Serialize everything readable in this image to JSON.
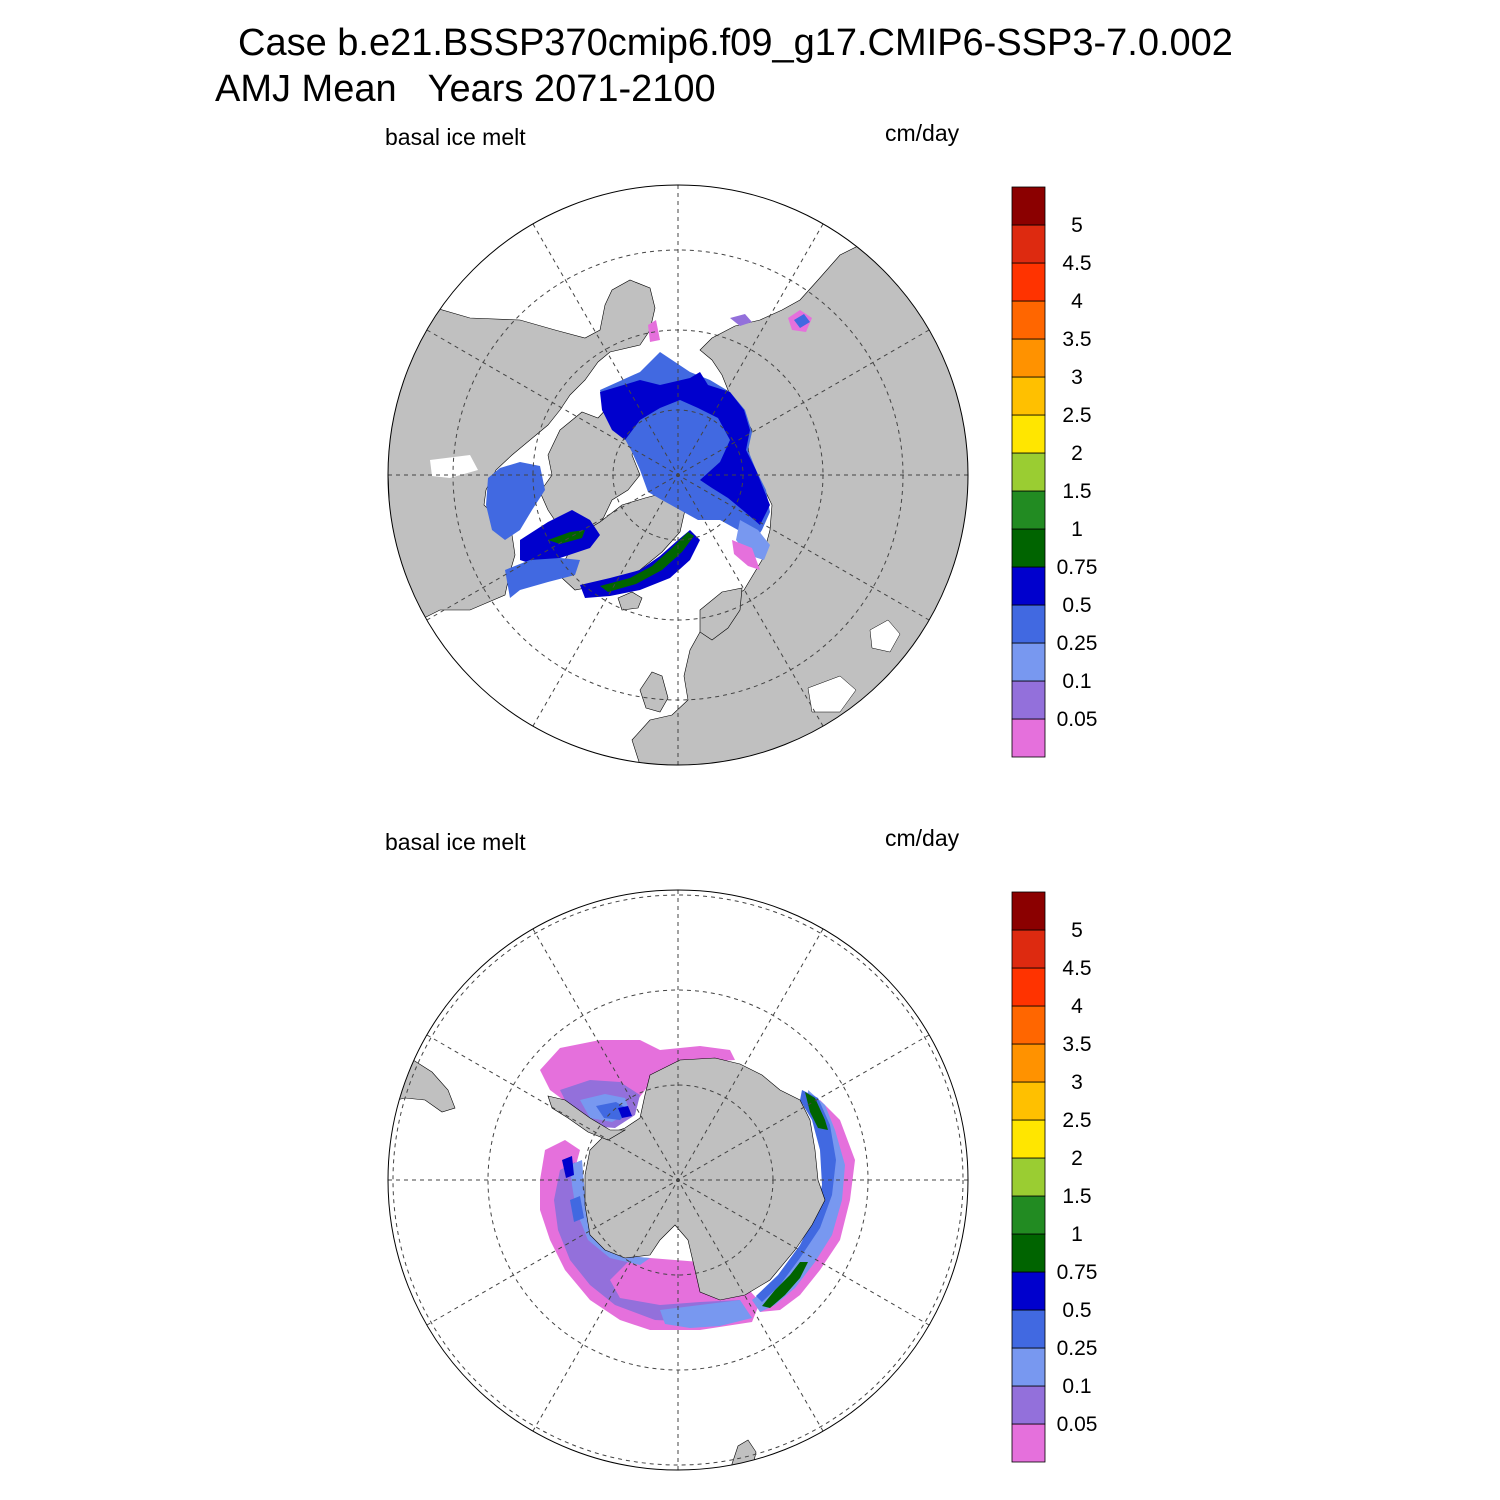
{
  "title": {
    "line1": "Case b.e21.BSSP370cmip6.f09_g17.CMIP6-SSP3-7.0.002",
    "line2": "AMJ Mean   Years 2071-2100"
  },
  "panels": [
    {
      "hemisphere": "north",
      "variable": "basal ice melt",
      "units": "cm/day"
    },
    {
      "hemisphere": "south",
      "variable": "basal ice melt",
      "units": "cm/day"
    }
  ],
  "colorbar": {
    "levels": [
      "0.05",
      "0.1",
      "0.25",
      "0.5",
      "0.75",
      "1",
      "1.5",
      "2",
      "2.5",
      "3",
      "3.5",
      "4",
      "4.5",
      "5"
    ],
    "colors": [
      "#e570dc",
      "#9370db",
      "#7898f0",
      "#4169e1",
      "#0000cd",
      "#006400",
      "#228b22",
      "#9acd32",
      "#ffe600",
      "#ffc000",
      "#ff9200",
      "#ff6600",
      "#ff3300",
      "#dd2a10",
      "#8b0000"
    ]
  },
  "colors": {
    "land": "#c0c0c0",
    "ocean": "#ffffff",
    "grid": "#444444"
  }
}
